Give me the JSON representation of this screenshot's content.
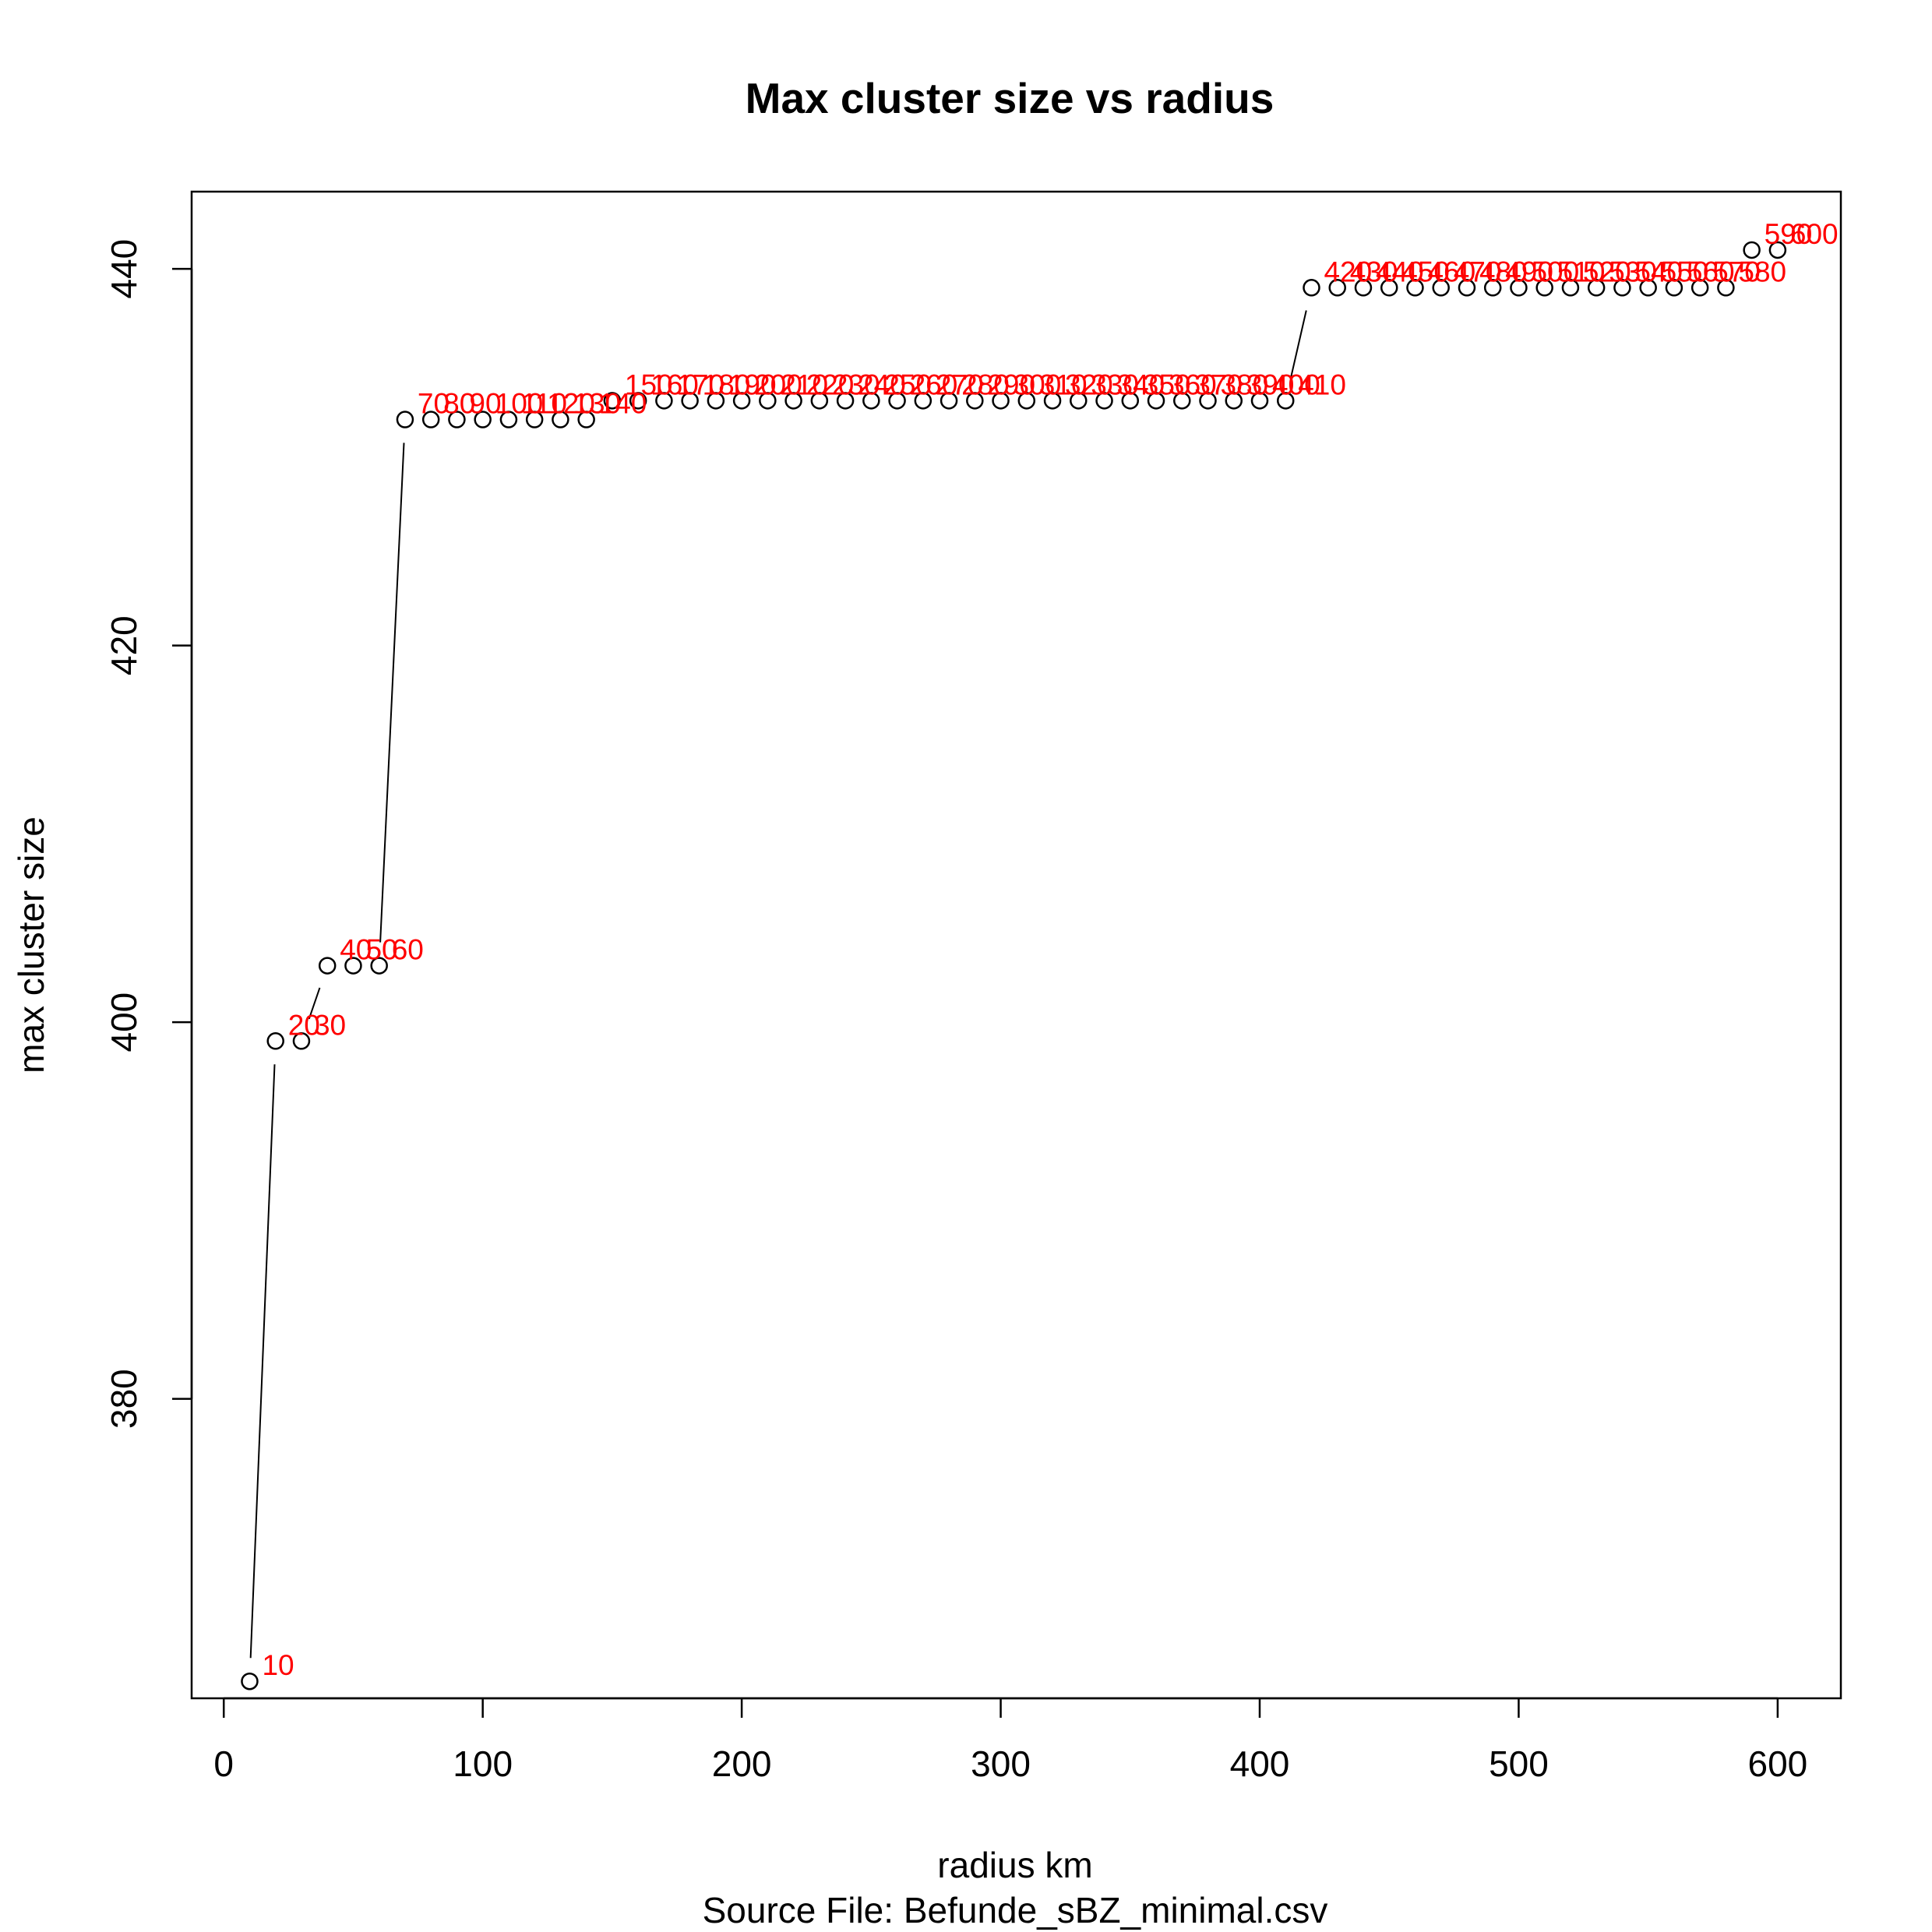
{
  "chart_data": {
    "type": "scatter",
    "title": "Max cluster size vs radius",
    "xlabel": "radius km",
    "subtitle": "Source File:  Befunde_sBZ_minimal.csv",
    "ylabel": "max cluster size",
    "xlim": [
      -12.4,
      624.4
    ],
    "ylim": [
      364.1,
      444.1
    ],
    "xticks": [
      0,
      100,
      200,
      300,
      400,
      500,
      600
    ],
    "yticks": [
      380,
      400,
      420,
      440
    ],
    "point_color": "#000000",
    "label_color": "#ff0000",
    "x": [
      10,
      20,
      30,
      40,
      50,
      60,
      70,
      80,
      90,
      100,
      110,
      120,
      130,
      140,
      150,
      160,
      170,
      180,
      190,
      200,
      210,
      220,
      230,
      240,
      250,
      260,
      270,
      280,
      290,
      300,
      310,
      320,
      330,
      340,
      350,
      360,
      370,
      380,
      390,
      400,
      410,
      420,
      430,
      440,
      450,
      460,
      470,
      480,
      490,
      500,
      510,
      520,
      530,
      540,
      550,
      560,
      570,
      580,
      590,
      600
    ],
    "y": [
      365,
      399,
      399,
      403,
      403,
      403,
      432,
      432,
      432,
      432,
      432,
      432,
      432,
      432,
      433,
      433,
      433,
      433,
      433,
      433,
      433,
      433,
      433,
      433,
      433,
      433,
      433,
      433,
      433,
      433,
      433,
      433,
      433,
      433,
      433,
      433,
      433,
      433,
      433,
      433,
      433,
      439,
      439,
      439,
      439,
      439,
      439,
      439,
      439,
      439,
      439,
      439,
      439,
      439,
      439,
      439,
      439,
      439,
      441,
      441
    ],
    "labels": [
      "10",
      "20",
      "30",
      "40",
      "50",
      "60",
      "70",
      "80",
      "90",
      "100",
      "110",
      "120",
      "130",
      "140",
      "150",
      "160",
      "170",
      "180",
      "190",
      "200",
      "210",
      "220",
      "230",
      "240",
      "250",
      "260",
      "270",
      "280",
      "290",
      "300",
      "310",
      "320",
      "330",
      "340",
      "350",
      "360",
      "370",
      "380",
      "390",
      "400",
      "410",
      "420",
      "430",
      "440",
      "450",
      "460",
      "470",
      "480",
      "490",
      "500",
      "510",
      "520",
      "530",
      "540",
      "550",
      "560",
      "570",
      "580",
      "590",
      "600"
    ]
  }
}
